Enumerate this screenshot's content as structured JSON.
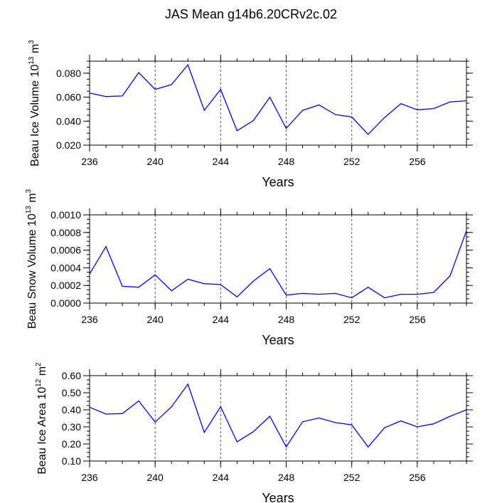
{
  "title": "JAS Mean g14b6.20CRv2c.02",
  "colors": {
    "line": "#0000ff",
    "axis": "#000000",
    "grid": "#555555",
    "background": "#ffffff"
  },
  "chart_data": [
    {
      "type": "line",
      "title": "",
      "xlabel": "Years",
      "ylabel": "Beau Ice Volume 10",
      "ylabel_exponent": "13",
      "ylabel_unit": " m",
      "ylabel_unit_exponent": "3",
      "xlim": [
        236,
        259
      ],
      "ylim": [
        0.02,
        0.09
      ],
      "xticks": [
        236,
        240,
        244,
        248,
        252,
        256
      ],
      "xtick_labels": [
        "236",
        "240",
        "244",
        "248",
        "252",
        "256"
      ],
      "yticks": [
        0.02,
        0.04,
        0.06,
        0.08
      ],
      "ytick_labels": [
        "0.020",
        "0.040",
        "0.060",
        "0.080"
      ],
      "vgrid": [
        240,
        244,
        248,
        252,
        256
      ],
      "x": [
        236,
        237,
        238,
        239,
        240,
        241,
        242,
        243,
        244,
        245,
        246,
        247,
        248,
        249,
        250,
        251,
        252,
        253,
        254,
        255,
        256,
        257,
        258,
        259
      ],
      "values": [
        0.0635,
        0.0605,
        0.061,
        0.0805,
        0.0665,
        0.0705,
        0.087,
        0.049,
        0.0665,
        0.032,
        0.0405,
        0.06,
        0.034,
        0.049,
        0.0535,
        0.0455,
        0.0435,
        0.029,
        0.043,
        0.0545,
        0.0495,
        0.0505,
        0.056,
        0.057
      ]
    },
    {
      "type": "line",
      "title": "",
      "xlabel": "Years",
      "ylabel": "Beau Snow Volume 10",
      "ylabel_exponent": "13",
      "ylabel_unit": " m",
      "ylabel_unit_exponent": "3",
      "xlim": [
        236,
        259
      ],
      "ylim": [
        0,
        0.001
      ],
      "xticks": [
        236,
        240,
        244,
        248,
        252,
        256
      ],
      "xtick_labels": [
        "236",
        "240",
        "244",
        "248",
        "252",
        "256"
      ],
      "yticks": [
        0,
        0.0002,
        0.0004,
        0.0006,
        0.0008,
        0.001
      ],
      "ytick_labels": [
        "0.0000",
        "0.0002",
        "0.0004",
        "0.0006",
        "0.0008",
        "0.0010"
      ],
      "vgrid": [
        240,
        244,
        248,
        252,
        256
      ],
      "x": [
        236,
        237,
        238,
        239,
        240,
        241,
        242,
        243,
        244,
        245,
        246,
        247,
        248,
        249,
        250,
        251,
        252,
        253,
        254,
        255,
        256,
        257,
        258,
        259
      ],
      "values": [
        0.00033,
        0.00064,
        0.00019,
        0.00018,
        0.00032,
        0.00014,
        0.00027,
        0.00022,
        0.00021,
        7e-05,
        0.00025,
        0.00039,
        9e-05,
        0.00011,
        0.0001,
        0.00011,
        6e-05,
        0.00018,
        6e-05,
        0.0001,
        0.0001,
        0.00012,
        0.00031,
        0.00082
      ]
    },
    {
      "type": "line",
      "title": "",
      "xlabel": "Years",
      "ylabel": "Beau Ice Area 10",
      "ylabel_exponent": "12",
      "ylabel_unit": " m",
      "ylabel_unit_exponent": "2",
      "xlim": [
        236,
        259
      ],
      "ylim": [
        0.1,
        0.6
      ],
      "xticks": [
        236,
        240,
        244,
        248,
        252,
        256
      ],
      "xtick_labels": [
        "236",
        "240",
        "244",
        "248",
        "252",
        "256"
      ],
      "yticks": [
        0.1,
        0.2,
        0.3,
        0.4,
        0.5,
        0.6
      ],
      "ytick_labels": [
        "0.10",
        "0.20",
        "0.30",
        "0.40",
        "0.50",
        "0.60"
      ],
      "vgrid": [
        240,
        244,
        248,
        252,
        256
      ],
      "x": [
        236,
        237,
        238,
        239,
        240,
        241,
        242,
        243,
        244,
        245,
        246,
        247,
        248,
        249,
        250,
        251,
        252,
        253,
        254,
        255,
        256,
        257,
        258,
        259
      ],
      "values": [
        0.415,
        0.375,
        0.378,
        0.452,
        0.328,
        0.418,
        0.55,
        0.268,
        0.418,
        0.212,
        0.272,
        0.362,
        0.183,
        0.33,
        0.352,
        0.325,
        0.312,
        0.182,
        0.295,
        0.335,
        0.3,
        0.318,
        0.362,
        0.4
      ]
    }
  ]
}
